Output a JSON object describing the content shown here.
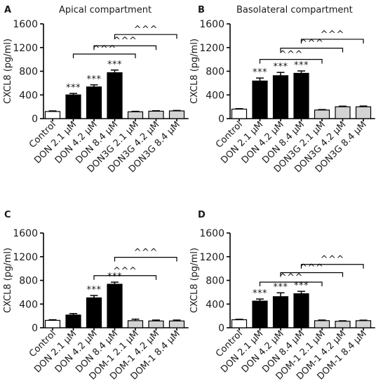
{
  "chart_data": [
    {
      "type": "bar",
      "panel": "A",
      "title": "Apical compartment",
      "ylabel": "CXCL8 (pg/ml)",
      "ylim": [
        0,
        1600
      ],
      "yticks": [
        "0",
        "400",
        "800",
        "1200",
        "1600"
      ],
      "categories": [
        "Control",
        "DON 2.1 µM",
        "DON 4.2 µM",
        "DON 8.4 µM",
        "DON3G 2.1 µM",
        "DON3G 4.2 µM",
        "DON3G 8.4 µM"
      ],
      "values": [
        120,
        400,
        535,
        775,
        115,
        125,
        130
      ],
      "errors": [
        10,
        25,
        35,
        45,
        8,
        8,
        8
      ],
      "fills": [
        "#ffffff",
        "#000000",
        "#000000",
        "#000000",
        "#d3d3d3",
        "#d3d3d3",
        "#d3d3d3"
      ],
      "annotations": [
        "",
        "***",
        "***",
        "***",
        "",
        "",
        ""
      ],
      "brackets": [
        {
          "from": 1,
          "to": 4,
          "y": 1090,
          "label": "^^^"
        },
        {
          "from": 2,
          "to": 5,
          "y": 1230,
          "label": "^^^"
        },
        {
          "from": 3,
          "to": 6,
          "y": 1420,
          "label": "^^^"
        }
      ]
    },
    {
      "type": "bar",
      "panel": "B",
      "title": "Basolateral compartment",
      "ylabel": "CXCL8 (pg/ml)",
      "ylim": [
        0,
        1600
      ],
      "yticks": [
        "0",
        "400",
        "800",
        "1200",
        "1600"
      ],
      "categories": [
        "Control",
        "DON 2.1 µM",
        "DON 4.2 µM",
        "DON 8.4 µM",
        "DON3G 2.1 µM",
        "DON3G 4.2 µM",
        "DON3G 8.4 µM"
      ],
      "values": [
        160,
        635,
        725,
        765,
        145,
        200,
        200
      ],
      "errors": [
        8,
        50,
        55,
        40,
        8,
        10,
        12
      ],
      "fills": [
        "#ffffff",
        "#000000",
        "#000000",
        "#000000",
        "#d3d3d3",
        "#d3d3d3",
        "#d3d3d3"
      ],
      "annotations": [
        "",
        "***",
        "***",
        "***",
        "",
        "",
        ""
      ],
      "brackets": [
        {
          "from": 1,
          "to": 4,
          "y": 1000,
          "label": "^^^"
        },
        {
          "from": 2,
          "to": 5,
          "y": 1190,
          "label": "^^^"
        },
        {
          "from": 3,
          "to": 6,
          "y": 1340,
          "label": "^^^"
        }
      ]
    },
    {
      "type": "bar",
      "panel": "C",
      "title": "",
      "ylabel": "CXCL8 (pg/ml)",
      "ylim": [
        0,
        1600
      ],
      "yticks": [
        "0",
        "400",
        "800",
        "1200",
        "1600"
      ],
      "categories": [
        "Control",
        "DON 2.1 µM",
        "DON 4.2 µM",
        "DON 8.4 µM",
        "DOM-1 2.1 µM",
        "DOM-1 4.2 µM",
        "DOM-1 8.4 µM"
      ],
      "values": [
        125,
        215,
        505,
        735,
        120,
        115,
        115
      ],
      "errors": [
        10,
        25,
        40,
        35,
        25,
        15,
        15
      ],
      "fills": [
        "#ffffff",
        "#000000",
        "#000000",
        "#000000",
        "#d3d3d3",
        "#d3d3d3",
        "#d3d3d3"
      ],
      "annotations": [
        "",
        "",
        "***",
        "***",
        "",
        "",
        ""
      ],
      "brackets": [
        {
          "from": 2,
          "to": 5,
          "y": 880,
          "label": "^^^"
        },
        {
          "from": 3,
          "to": 6,
          "y": 1190,
          "label": "^^^"
        }
      ]
    },
    {
      "type": "bar",
      "panel": "D",
      "title": "",
      "ylabel": "CXCL8 (pg/ml)",
      "ylim": [
        0,
        1600
      ],
      "yticks": [
        "0",
        "400",
        "800",
        "1200",
        "1600"
      ],
      "categories": [
        "Control",
        "DON 2.1 µM",
        "DON 4.2 µM",
        "DON 8.4 µM",
        "DOM-1 2.1 µM",
        "DOM-1 4.2 µM",
        "DOM-1 8.4 µM"
      ],
      "values": [
        135,
        450,
        525,
        575,
        120,
        110,
        120
      ],
      "errors": [
        8,
        35,
        65,
        40,
        10,
        8,
        8
      ],
      "fills": [
        "#ffffff",
        "#000000",
        "#000000",
        "#000000",
        "#d3d3d3",
        "#d3d3d3",
        "#d3d3d3"
      ],
      "annotations": [
        "",
        "***",
        "***",
        "***",
        "",
        "",
        ""
      ],
      "brackets": [
        {
          "from": 1,
          "to": 4,
          "y": 770,
          "label": "^^^"
        },
        {
          "from": 2,
          "to": 5,
          "y": 930,
          "label": "^^^"
        },
        {
          "from": 3,
          "to": 6,
          "y": 1070,
          "label": "^^^"
        }
      ]
    }
  ]
}
